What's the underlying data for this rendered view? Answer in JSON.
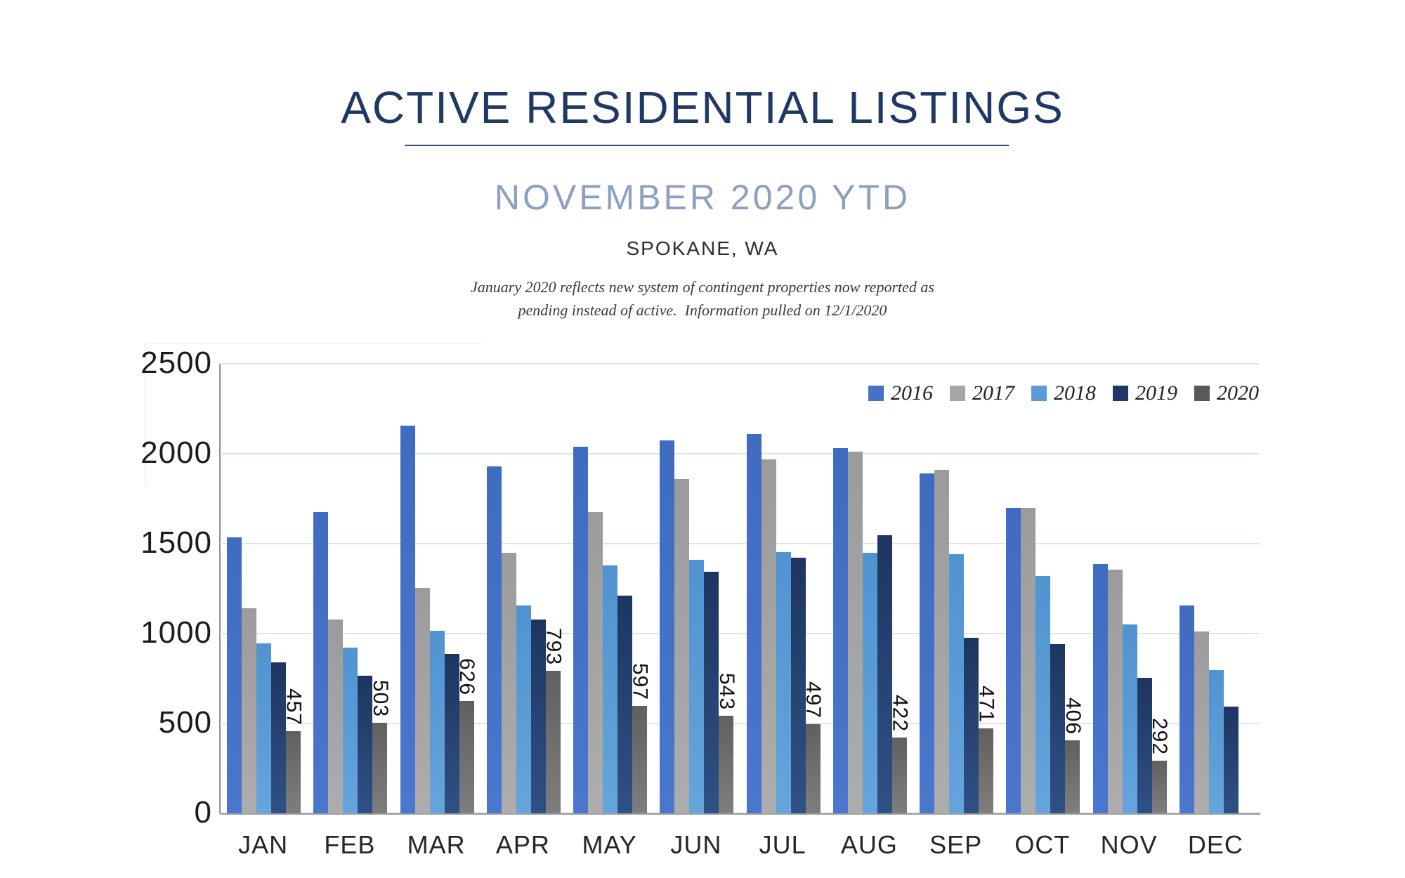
{
  "title": {
    "text": "ACTIVE RESIDENTIAL LISTINGS"
  },
  "subtitle": {
    "text": "NOVEMBER 2020 YTD"
  },
  "location": {
    "text": "SPOKANE, WA"
  },
  "note": {
    "line1": "January 2020 reflects new system of contingent properties now reported as",
    "line2": "pending instead of active.  Information pulled on 12/1/2020"
  },
  "chart_data": {
    "type": "bar",
    "title": "Active Residential Listings by month, 2016-2020",
    "categories": [
      "JAN",
      "FEB",
      "MAR",
      "APR",
      "MAY",
      "JUN",
      "JUL",
      "AUG",
      "SEP",
      "OCT",
      "NOV",
      "DEC"
    ],
    "series": [
      {
        "name": "2016",
        "color": "#4472C4",
        "color_top": "#3F6BC0",
        "color_bottom": "#4A77CD",
        "values": [
          1535,
          1675,
          2155,
          1930,
          2040,
          2075,
          2110,
          2030,
          1890,
          1700,
          1385,
          1155
        ]
      },
      {
        "name": "2017",
        "color": "#A6A6A6",
        "color_top": "#9B9B9B",
        "color_bottom": "#ADADAD",
        "values": [
          1140,
          1080,
          1255,
          1450,
          1675,
          1860,
          1970,
          2010,
          1910,
          1700,
          1355,
          1010
        ]
      },
      {
        "name": "2018",
        "color": "#5B9BD5",
        "color_top": "#4F93D0",
        "color_bottom": "#66A4DC",
        "values": [
          945,
          920,
          1015,
          1155,
          1380,
          1410,
          1455,
          1450,
          1440,
          1320,
          1050,
          795
        ]
      },
      {
        "name": "2019",
        "color": "#1F3864",
        "color_top": "#1E3560",
        "color_bottom": "#2F5185",
        "values": [
          840,
          765,
          885,
          1080,
          1210,
          1345,
          1420,
          1545,
          975,
          940,
          755,
          595
        ]
      },
      {
        "name": "2020",
        "color": "#595959",
        "color_top": "#606060",
        "color_bottom": "#7E7E7E",
        "values": [
          457,
          503,
          626,
          793,
          597,
          543,
          497,
          422,
          471,
          406,
          292,
          null
        ],
        "data_labels_shown": true
      }
    ],
    "data_label_series": "2020",
    "ylim": [
      0,
      2500
    ],
    "yticks": [
      0,
      500,
      1000,
      1500,
      2000,
      2500
    ],
    "grid": true,
    "legend_position": "top-right",
    "gridline_color": "#DCE4F2",
    "axis_color": "#A8A8A8"
  }
}
